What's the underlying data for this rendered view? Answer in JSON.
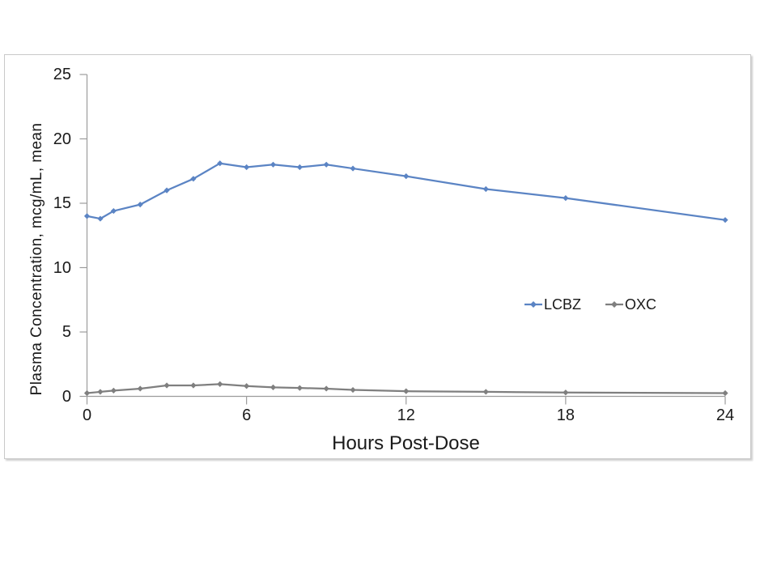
{
  "chart_data": {
    "type": "line",
    "title": "",
    "xlabel": "Hours Post-Dose",
    "ylabel": "Plasma Concentration, mcg/mL, mean",
    "x": [
      0,
      0.5,
      1,
      2,
      3,
      4,
      5,
      6,
      7,
      8,
      9,
      10,
      12,
      15,
      18,
      24
    ],
    "series": [
      {
        "name": "LCBZ",
        "color": "#5B84C4",
        "values": [
          14.0,
          13.8,
          14.4,
          14.9,
          16.0,
          16.9,
          18.1,
          17.8,
          18.0,
          17.8,
          18.0,
          17.7,
          17.1,
          16.1,
          15.4,
          13.7
        ]
      },
      {
        "name": "OXC",
        "color": "#7F7F7F",
        "values": [
          0.25,
          0.35,
          0.45,
          0.6,
          0.85,
          0.85,
          0.95,
          0.8,
          0.7,
          0.65,
          0.6,
          0.5,
          0.4,
          0.35,
          0.3,
          0.25
        ]
      }
    ],
    "xlim": [
      0,
      24
    ],
    "ylim": [
      0,
      25
    ],
    "x_ticks": [
      0,
      6,
      12,
      18,
      24
    ],
    "y_ticks": [
      0,
      5,
      10,
      15,
      20,
      25
    ],
    "grid": false,
    "marker": "diamond",
    "legend_position": "middle-right",
    "axis_color": "#9c9c9c",
    "text_color": "#1a1a1a"
  }
}
